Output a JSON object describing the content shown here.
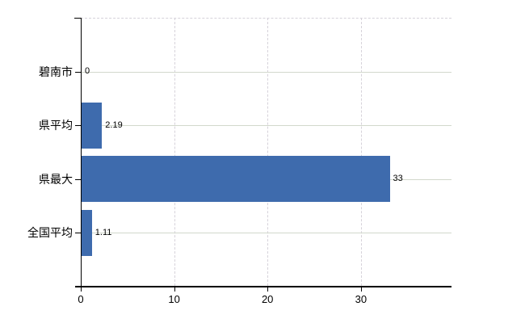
{
  "chart_data": {
    "type": "bar",
    "orientation": "horizontal",
    "title": "",
    "xlabel": "",
    "ylabel": "",
    "categories": [
      "碧南市",
      "県平均",
      "県最大",
      "全国平均"
    ],
    "values": [
      0,
      2.19,
      33,
      1.11
    ],
    "value_labels": [
      "0",
      "2.19",
      "33",
      "1.11"
    ],
    "x_ticks": [
      0,
      10,
      20,
      30
    ],
    "x_tick_labels": [
      "0",
      "10",
      "20",
      "30"
    ],
    "xlim": [
      0,
      39.7
    ],
    "grid": true,
    "legend": false
  },
  "colors": {
    "bar": "#3e6bad",
    "h_grid": "#d2d8cc",
    "v_grid": "#d6d2da",
    "axis": "#000000",
    "text": "#000000",
    "background": "#ffffff"
  }
}
